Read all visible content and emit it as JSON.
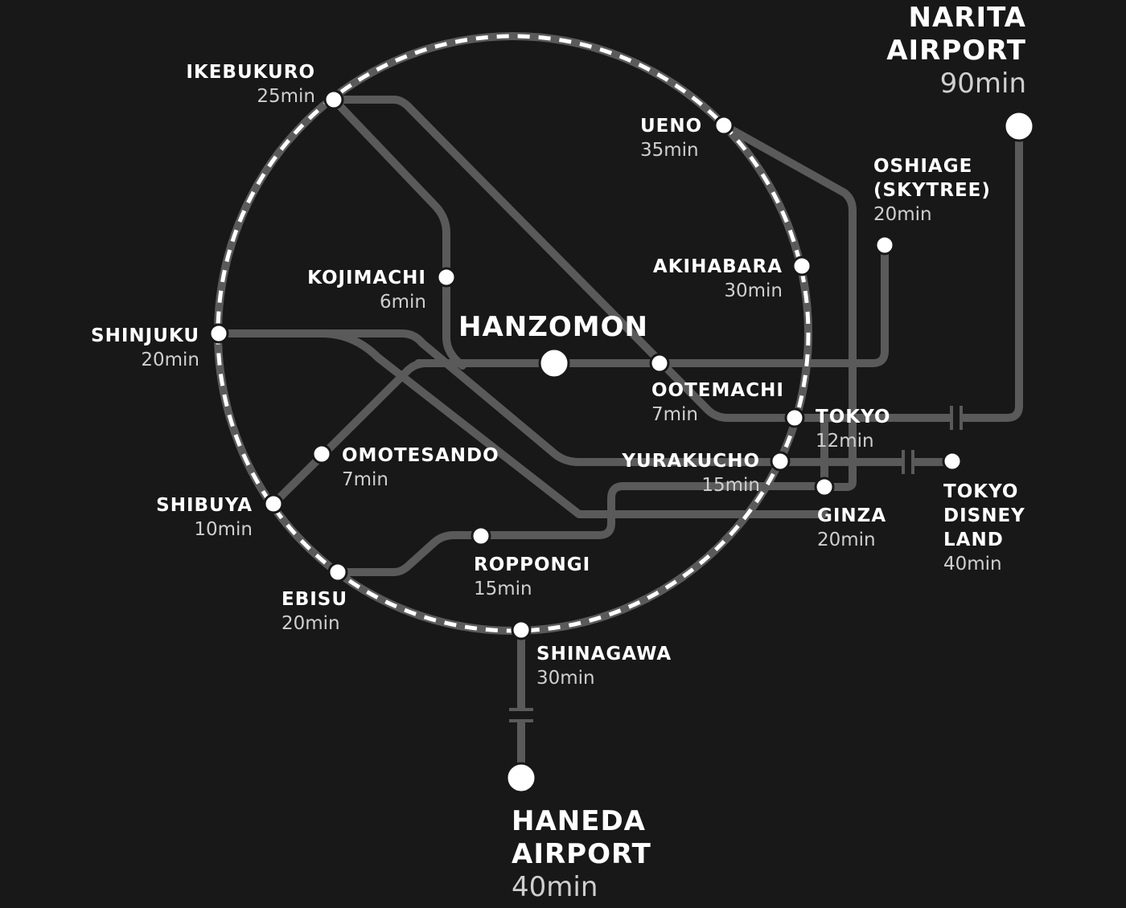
{
  "center": {
    "name": "HANZOMON"
  },
  "stations": {
    "ikebukuro": {
      "name": "IKEBUKURO",
      "time": "25min"
    },
    "ueno": {
      "name": "UENO",
      "time": "35min"
    },
    "oshiage": {
      "name": "OSHIAGE",
      "name2": "(SKYTREE)",
      "time": "20min"
    },
    "kojimachi": {
      "name": "KOJIMACHI",
      "time": "6min"
    },
    "akihabara": {
      "name": "AKIHABARA",
      "time": "30min"
    },
    "shinjuku": {
      "name": "SHINJUKU",
      "time": "20min"
    },
    "otemachi": {
      "name": "OOTEMACHI",
      "time": "7min"
    },
    "tokyo": {
      "name": "TOKYO",
      "time": "12min"
    },
    "omotesando": {
      "name": "OMOTESANDO",
      "time": "7min"
    },
    "yurakucho": {
      "name": "YURAKUCHO",
      "time": "15min"
    },
    "shibuya": {
      "name": "SHIBUYA",
      "time": "10min"
    },
    "ginza": {
      "name": "GINZA",
      "time": "20min"
    },
    "disney": {
      "name": "TOKYO",
      "name2": "DISNEY",
      "name3": "LAND",
      "time": "40min"
    },
    "roppongi": {
      "name": "ROPPONGI",
      "time": "15min"
    },
    "ebisu": {
      "name": "EBISU",
      "time": "20min"
    },
    "shinagawa": {
      "name": "SHINAGAWA",
      "time": "30min"
    }
  },
  "airports": {
    "narita": {
      "line1": "NARITA",
      "line2": "AIRPORT",
      "time": "90min"
    },
    "haneda": {
      "line1": "HANEDA",
      "line2": "AIRPORT",
      "time": "40min"
    }
  },
  "colors": {
    "background": "#181818",
    "line": "#5a5a5a",
    "ring_dash": "#ffffff",
    "station": "#ffffff"
  }
}
